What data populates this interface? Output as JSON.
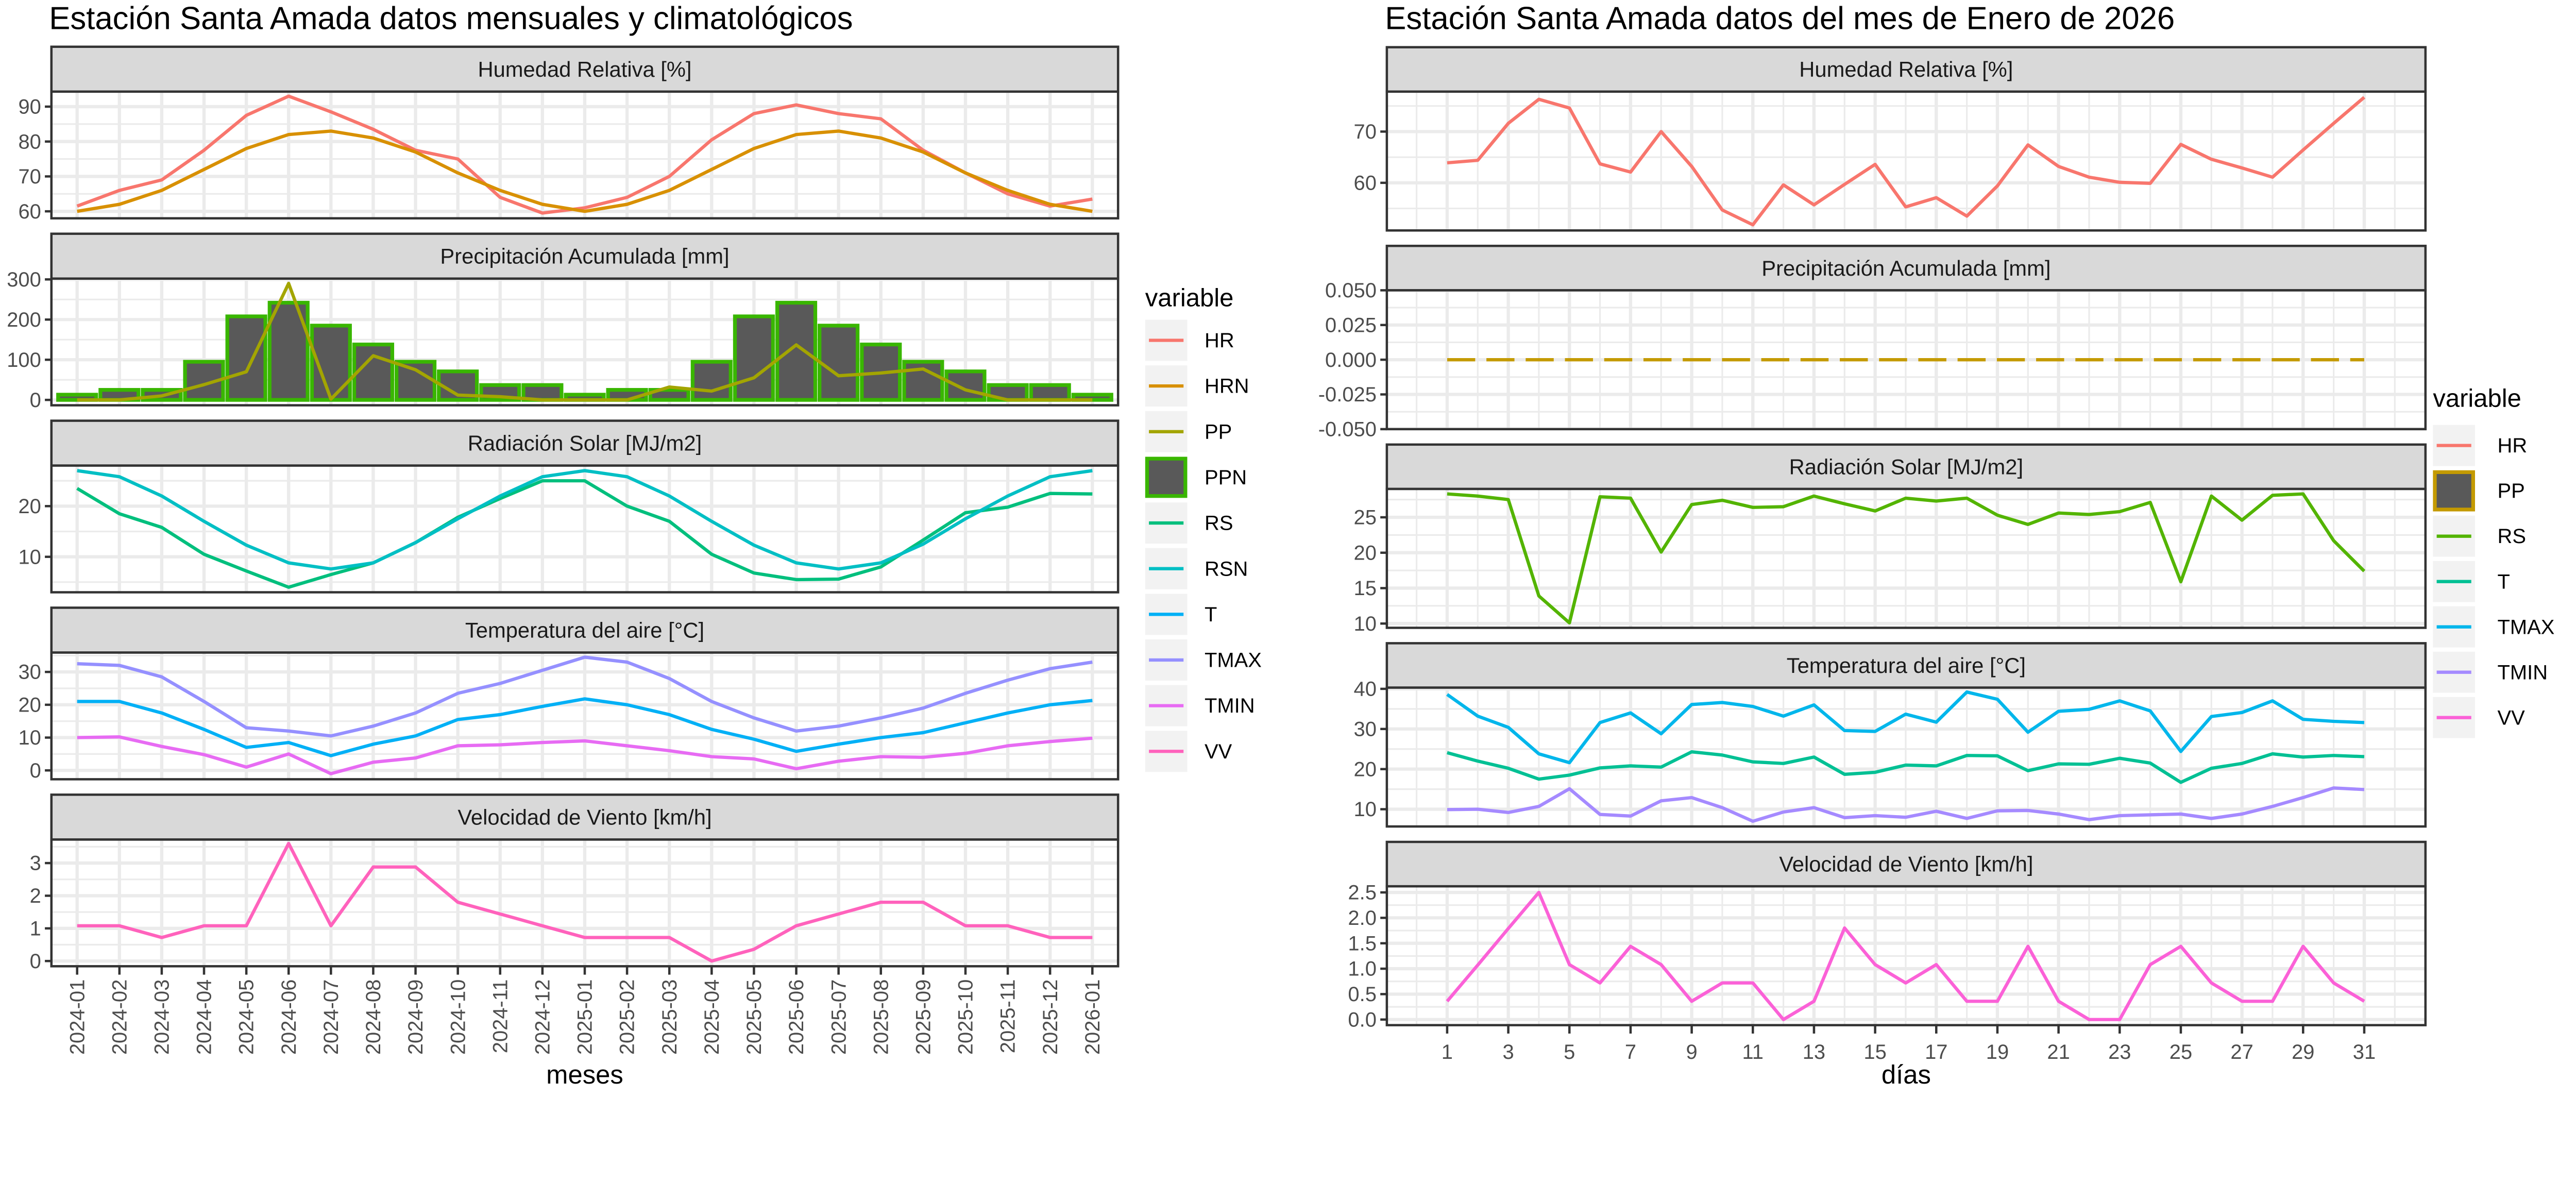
{
  "chart_data": [
    {
      "type": "line",
      "title": "Estación Santa Amada datos mensuales y climatológicos",
      "xlabel": "meses",
      "x": [
        "2024-01",
        "2024-02",
        "2024-03",
        "2024-04",
        "2024-05",
        "2024-06",
        "2024-07",
        "2024-08",
        "2024-09",
        "2024-10",
        "2024-11",
        "2024-12",
        "2025-01",
        "2025-02",
        "2025-03",
        "2025-04",
        "2025-05",
        "2025-06",
        "2025-07",
        "2025-08",
        "2025-09",
        "2025-10",
        "2025-11",
        "2025-12",
        "2026-01"
      ],
      "grid": true,
      "legend": {
        "title": "variable",
        "placement": "right",
        "items": [
          {
            "label": "HR",
            "color": "#F8766D",
            "key": "line"
          },
          {
            "label": "HRN",
            "color": "#D89000",
            "key": "line"
          },
          {
            "label": "PP",
            "color": "#A3A500",
            "key": "line"
          },
          {
            "label": "PPN",
            "color": "#39B600",
            "key": "bar"
          },
          {
            "label": "RS",
            "color": "#00BF7D",
            "key": "line"
          },
          {
            "label": "RSN",
            "color": "#00BFC4",
            "key": "line"
          },
          {
            "label": "T",
            "color": "#00B0F6",
            "key": "line"
          },
          {
            "label": "TMAX",
            "color": "#9590FF",
            "key": "line"
          },
          {
            "label": "TMIN",
            "color": "#E76BF3",
            "key": "line"
          },
          {
            "label": "VV",
            "color": "#FF62BC",
            "key": "line"
          }
        ]
      },
      "panels": [
        {
          "title": "Humedad Relativa [%]",
          "ylim": [
            58,
            94.3
          ],
          "yticks": [
            60,
            70,
            80,
            90
          ],
          "series": [
            {
              "name": "HR",
              "type": "line",
              "color": "#F8766D",
              "values": [
                61.5,
                66,
                69,
                77.5,
                87.5,
                93,
                88.5,
                83.5,
                77.5,
                75,
                64,
                59.5,
                61,
                64,
                70,
                80.5,
                88,
                90.5,
                88,
                86.5,
                77.5,
                71,
                65,
                61.5,
                63.5
              ]
            },
            {
              "name": "HRN",
              "type": "line",
              "color": "#D89000",
              "values": [
                60,
                62,
                66,
                72,
                78,
                82,
                83,
                81,
                77,
                71,
                66,
                62,
                60,
                62,
                66,
                72,
                78,
                82,
                83,
                81,
                77,
                71,
                66,
                62,
                60
              ]
            }
          ]
        },
        {
          "title": "Precipitación Acumulada [mm]",
          "ylim": [
            -13.4,
            302
          ],
          "yticks": [
            0,
            100,
            200,
            300
          ],
          "series": [
            {
              "name": "PPN",
              "type": "bar",
              "color": "#39B600",
              "fill": "#595959",
              "values": [
                13,
                25,
                25,
                95,
                208,
                242,
                185,
                138,
                95,
                71,
                37,
                37,
                13,
                25,
                25,
                95,
                208,
                242,
                185,
                138,
                95,
                71,
                37,
                37,
                13
              ]
            },
            {
              "name": "PP",
              "type": "line",
              "color": "#A3A500",
              "values": [
                0,
                0,
                10,
                38,
                70,
                290,
                2,
                110,
                75,
                12,
                8,
                0,
                0,
                0,
                32,
                22,
                55,
                137,
                60,
                67,
                77,
                25,
                0,
                0,
                0
              ]
            }
          ]
        },
        {
          "title": "Radiación Solar [MJ/m2]",
          "ylim": [
            3,
            28
          ],
          "yticks": [
            10,
            20
          ],
          "series": [
            {
              "name": "RS",
              "type": "line",
              "color": "#00BF7D",
              "values": [
                23.5,
                18.5,
                15.8,
                10.5,
                7.2,
                4.0,
                6.5,
                8.8,
                12.8,
                17.8,
                21.5,
                25,
                25,
                20,
                17,
                10.5,
                6.8,
                5.5,
                5.6,
                8,
                13.3,
                18.7,
                19.8,
                22.5,
                22.4
              ]
            },
            {
              "name": "RSN",
              "type": "line",
              "color": "#00BFC4",
              "values": [
                27,
                25.8,
                22,
                17,
                12.3,
                8.8,
                7.6,
                8.8,
                12.8,
                17.5,
                22,
                25.8,
                27,
                25.8,
                22,
                17,
                12.3,
                8.8,
                7.6,
                8.8,
                12.5,
                17.5,
                22,
                25.8,
                27
              ]
            }
          ]
        },
        {
          "title": "Temperatura del aire [°C]",
          "ylim": [
            -2.7,
            35.9
          ],
          "yticks": [
            0,
            10,
            20,
            30
          ],
          "series": [
            {
              "name": "TMAX",
              "type": "line",
              "color": "#9590FF",
              "values": [
                32.5,
                32,
                28.5,
                21,
                13,
                12,
                10.5,
                13.5,
                17.5,
                23.5,
                26.5,
                30.5,
                34.5,
                33,
                28,
                21,
                16,
                12,
                13.5,
                16,
                19,
                23.5,
                27.5,
                31,
                33
              ]
            },
            {
              "name": "T",
              "type": "line",
              "color": "#00B0F6",
              "values": [
                21,
                21,
                17.5,
                12.5,
                7,
                8.5,
                4.5,
                8,
                10.5,
                15.5,
                17,
                19.5,
                21.8,
                20,
                17,
                12.5,
                9.5,
                5.8,
                8,
                10,
                11.5,
                14.5,
                17.5,
                20,
                21.3
              ]
            },
            {
              "name": "TMIN",
              "type": "line",
              "color": "#E76BF3",
              "values": [
                10,
                10.2,
                7.3,
                4.8,
                1,
                5,
                -1,
                2.5,
                3.8,
                7.5,
                7.8,
                8.5,
                9,
                7.5,
                6,
                4.2,
                3.5,
                0.5,
                2.8,
                4.2,
                4,
                5.2,
                7.5,
                8.8,
                9.8
              ]
            }
          ]
        },
        {
          "title": "Velocidad de Viento [km/h]",
          "ylim": [
            -0.16,
            3.72
          ],
          "yticks": [
            0,
            1,
            2,
            3
          ],
          "series": [
            {
              "name": "VV",
              "type": "line",
              "color": "#FF62BC",
              "values": [
                1.08,
                1.08,
                0.72,
                1.08,
                1.08,
                3.6,
                1.08,
                2.88,
                2.88,
                1.8,
                1.44,
                1.08,
                0.72,
                0.72,
                0.72,
                0,
                0.36,
                1.08,
                1.44,
                1.8,
                1.8,
                1.08,
                1.08,
                0.72,
                0.72
              ]
            }
          ]
        }
      ]
    },
    {
      "type": "line",
      "title": "Estación Santa Amada datos del mes de Enero de 2026",
      "xlabel": "días",
      "x": [
        1,
        2,
        3,
        4,
        5,
        6,
        7,
        8,
        9,
        10,
        11,
        12,
        13,
        14,
        15,
        16,
        17,
        18,
        19,
        20,
        21,
        22,
        23,
        24,
        25,
        26,
        27,
        28,
        29,
        30,
        31
      ],
      "xticks": [
        1,
        3,
        5,
        7,
        9,
        11,
        13,
        15,
        17,
        19,
        21,
        23,
        25,
        27,
        29,
        31
      ],
      "grid": true,
      "legend": {
        "title": "variable",
        "placement": "right",
        "items": [
          {
            "label": "HR",
            "color": "#F8766D",
            "key": "line"
          },
          {
            "label": "PP",
            "color": "#C49A00",
            "key": "bar"
          },
          {
            "label": "RS",
            "color": "#53B400",
            "key": "line"
          },
          {
            "label": "T",
            "color": "#00C094",
            "key": "line"
          },
          {
            "label": "TMAX",
            "color": "#00B6EB",
            "key": "line"
          },
          {
            "label": "TMIN",
            "color": "#A58AFF",
            "key": "line"
          },
          {
            "label": "VV",
            "color": "#FB61D7",
            "key": "line"
          }
        ]
      },
      "panels": [
        {
          "title": "Humedad Relativa [%]",
          "ylim": [
            50.7,
            77.8
          ],
          "yticks": [
            60,
            70
          ],
          "series": [
            {
              "name": "HR",
              "type": "line",
              "color": "#F8766D",
              "values": [
                63.9,
                64.4,
                71.6,
                76.3,
                74.6,
                63.7,
                62.1,
                70,
                63.2,
                54.7,
                51.8,
                59.6,
                55.7,
                59.7,
                63.6,
                55.3,
                57.1,
                53.5,
                59.4,
                67.4,
                63.2,
                61.1,
                60.1,
                59.9,
                67.5,
                64.6,
                62.9,
                61.1,
                66.4,
                71.6,
                76.7
              ]
            }
          ]
        },
        {
          "title": "Precipitación Acumulada [mm]",
          "ylim": [
            -0.05,
            0.05
          ],
          "yticks": [
            -0.05,
            -0.025,
            0,
            0.025,
            0.05
          ],
          "ytick_labels": [
            "-0.050",
            "-0.025",
            "0.000",
            "0.025",
            "0.050"
          ],
          "series": [
            {
              "name": "PP",
              "type": "line",
              "dashed": true,
              "color": "#C49A00",
              "values": [
                0,
                0,
                0,
                0,
                0,
                0,
                0,
                0,
                0,
                0,
                0,
                0,
                0,
                0,
                0,
                0,
                0,
                0,
                0,
                0,
                0,
                0,
                0,
                0,
                0,
                0,
                0,
                0,
                0,
                0,
                0
              ]
            }
          ]
        },
        {
          "title": "Radiación Solar [MJ/m2]",
          "ylim": [
            9.4,
            29
          ],
          "yticks": [
            10,
            15,
            20,
            25
          ],
          "series": [
            {
              "name": "RS",
              "type": "line",
              "color": "#53B400",
              "values": [
                28.3,
                28,
                27.5,
                13.9,
                10.1,
                27.9,
                27.7,
                20.1,
                26.8,
                27.4,
                26.4,
                26.5,
                28,
                26.9,
                25.9,
                27.7,
                27.3,
                27.7,
                25.3,
                24,
                25.6,
                25.4,
                25.8,
                27.1,
                15.9,
                28,
                24.6,
                28.1,
                28.3,
                21.7,
                17.4
              ]
            }
          ]
        },
        {
          "title": "Temperatura del aire [°C]",
          "ylim": [
            5.7,
            40.3
          ],
          "yticks": [
            10,
            20,
            30,
            40
          ],
          "series": [
            {
              "name": "TMAX",
              "type": "line",
              "color": "#00B6EB",
              "values": [
                38.6,
                33.2,
                30.4,
                23.8,
                21.6,
                31.6,
                34,
                28.8,
                36.1,
                36.6,
                35.6,
                33.2,
                36,
                29.6,
                29.4,
                33.7,
                31.7,
                39.2,
                37.4,
                29.2,
                34.4,
                34.9,
                37,
                34.5,
                24.4,
                33.1,
                34.1,
                37,
                32.4,
                31.9,
                31.6
              ]
            },
            {
              "name": "T",
              "type": "line",
              "color": "#00C094",
              "values": [
                24.1,
                22,
                20.2,
                17.5,
                18.5,
                20.3,
                20.8,
                20.5,
                24.3,
                23.5,
                21.8,
                21.4,
                23,
                18.7,
                19.2,
                21,
                20.8,
                23.4,
                23.3,
                19.6,
                21.3,
                21.2,
                22.7,
                21.5,
                16.7,
                20.2,
                21.4,
                23.8,
                23,
                23.4,
                23.1
              ]
            },
            {
              "name": "TMIN",
              "type": "line",
              "color": "#A58AFF",
              "values": [
                9.9,
                10,
                9.2,
                10.7,
                15.1,
                8.7,
                8.3,
                12.1,
                12.9,
                10.4,
                7,
                9.3,
                10.4,
                7.9,
                8.4,
                8,
                9.5,
                7.7,
                9.6,
                9.7,
                8.8,
                7.4,
                8.4,
                8.6,
                8.8,
                7.7,
                8.8,
                10.7,
                12.9,
                15.3,
                14.9
              ]
            }
          ]
        },
        {
          "title": "Velocidad de Viento [km/h]",
          "ylim": [
            -0.11,
            2.62
          ],
          "yticks": [
            0,
            0.5,
            1,
            1.5,
            2,
            2.5
          ],
          "ytick_labels": [
            "0.0",
            "0.5",
            "1.0",
            "1.5",
            "2.0",
            "2.5"
          ],
          "series": [
            {
              "name": "VV",
              "type": "line",
              "color": "#FB61D7",
              "values": [
                0.36,
                1.07,
                1.79,
                2.5,
                1.08,
                0.72,
                1.44,
                1.08,
                0.36,
                0.72,
                0.72,
                0,
                0.36,
                1.8,
                1.08,
                0.72,
                1.08,
                0.36,
                0.36,
                1.44,
                0.36,
                0,
                0,
                1.08,
                1.44,
                0.72,
                0.36,
                0.36,
                1.44,
                0.72,
                0.36
              ]
            }
          ]
        }
      ]
    }
  ]
}
